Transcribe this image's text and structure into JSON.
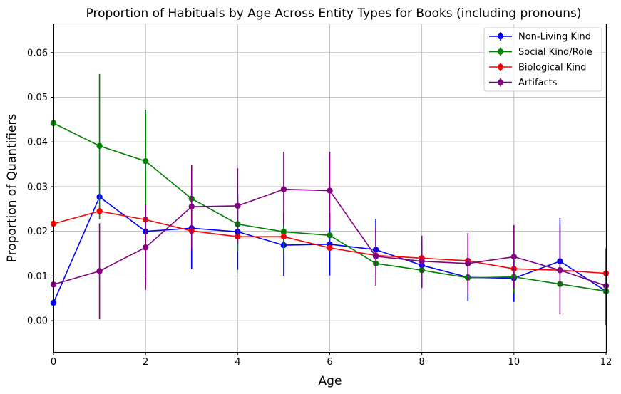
{
  "chart_data": {
    "type": "line",
    "title": "Proportion of Habituals by Age Across Entity Types for Books (including pronouns)",
    "xlabel": "Age",
    "ylabel": "Proportion of Quantifiers",
    "xlim": [
      0,
      12
    ],
    "ylim": [
      -0.007,
      0.0665
    ],
    "xticks": [
      "0",
      "2",
      "4",
      "6",
      "8",
      "10",
      "12"
    ],
    "yticks": [
      "0.00",
      "0.01",
      "0.02",
      "0.03",
      "0.04",
      "0.05",
      "0.06"
    ],
    "grid": true,
    "legend_position": "top-right",
    "x": [
      0,
      1,
      2,
      3,
      4,
      5,
      6,
      7,
      8,
      9,
      10,
      11,
      12
    ],
    "series": [
      {
        "name": "Non-Living Kind",
        "color": "#0000ff",
        "values": [
          0.004,
          0.0277,
          0.02,
          0.0207,
          0.0199,
          0.0169,
          0.0171,
          0.0159,
          0.0124,
          0.0097,
          0.0095,
          0.0133,
          0.0066
        ],
        "err_low": [
          0.004,
          0.0277,
          0.02,
          0.0115,
          0.0114,
          0.01,
          0.0101,
          0.0159,
          0.0075,
          0.0044,
          0.0042,
          0.0133,
          0.0066
        ],
        "err_high": [
          0.004,
          0.0277,
          0.02,
          0.03,
          0.0285,
          0.0239,
          0.0241,
          0.0228,
          0.0174,
          0.015,
          0.0148,
          0.023,
          0.0066
        ]
      },
      {
        "name": "Social Kind/Role",
        "color": "#008000",
        "values": [
          0.0442,
          0.0391,
          0.0357,
          0.0273,
          0.0216,
          0.0199,
          0.0191,
          0.0128,
          0.0113,
          0.0096,
          0.0098,
          0.0082,
          0.0066
        ],
        "err_low": [
          0.0442,
          0.0227,
          0.0242,
          0.0273,
          0.0155,
          0.0155,
          0.0191,
          0.0128,
          0.0113,
          0.0096,
          0.0062,
          0.0082,
          0.0066
        ],
        "err_high": [
          0.0442,
          0.0552,
          0.0472,
          0.0273,
          0.0277,
          0.0243,
          0.0191,
          0.0128,
          0.0113,
          0.0096,
          0.0134,
          0.0082,
          0.0066
        ]
      },
      {
        "name": "Biological Kind",
        "color": "#ff0000",
        "values": [
          0.0217,
          0.0245,
          0.0226,
          0.0201,
          0.0188,
          0.0188,
          0.0163,
          0.0146,
          0.014,
          0.0134,
          0.0116,
          0.0113,
          0.0106
        ],
        "err_low": [
          0.0217,
          0.0245,
          0.0226,
          0.0201,
          0.0188,
          0.0188,
          0.0163,
          0.0146,
          0.014,
          0.0134,
          0.0116,
          0.0113,
          0.0106
        ],
        "err_high": [
          0.0217,
          0.0245,
          0.0226,
          0.0201,
          0.0188,
          0.0188,
          0.0163,
          0.0146,
          0.014,
          0.0134,
          0.0116,
          0.0113,
          0.0106
        ]
      },
      {
        "name": "Artifacts",
        "color": "#800080",
        "values": [
          0.0081,
          0.0111,
          0.0164,
          0.0255,
          0.0257,
          0.0294,
          0.0291,
          0.0144,
          0.0133,
          0.0128,
          0.0143,
          0.0113,
          0.0078
        ],
        "err_low": [
          0.0081,
          0.0003,
          0.0069,
          0.0162,
          0.0172,
          0.0213,
          0.0207,
          0.0078,
          0.0073,
          0.0063,
          0.0072,
          0.0014,
          -0.001
        ],
        "err_high": [
          0.0081,
          0.0218,
          0.026,
          0.0348,
          0.0341,
          0.0378,
          0.0378,
          0.021,
          0.019,
          0.0196,
          0.0214,
          0.0212,
          0.0162
        ]
      }
    ]
  }
}
